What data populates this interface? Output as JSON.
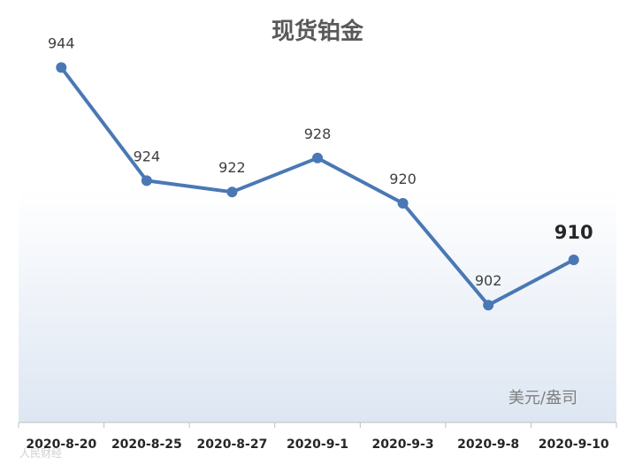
{
  "chart_data": {
    "type": "line",
    "title": "现货铂金",
    "unit": "美元/盎司",
    "categories": [
      "2020-8-20",
      "2020-8-25",
      "2020-8-27",
      "2020-9-1",
      "2020-9-3",
      "2020-9-8",
      "2020-9-10"
    ],
    "values": [
      944,
      924,
      922,
      928,
      920,
      902,
      910
    ],
    "data_labels": [
      "944",
      "924",
      "922",
      "928",
      "920",
      "902",
      "910"
    ],
    "emphasized_label_index": 6,
    "ylim": [
      880,
      950
    ],
    "grid": false,
    "legend": "none",
    "watermark": "人民财经",
    "colors": {
      "line": "#4a78b5",
      "marker": "#4a78b5",
      "background_gradient_top": "#ffffff",
      "background_gradient_bottom": "#dde6f2",
      "axis": "#bfbfbf"
    }
  }
}
